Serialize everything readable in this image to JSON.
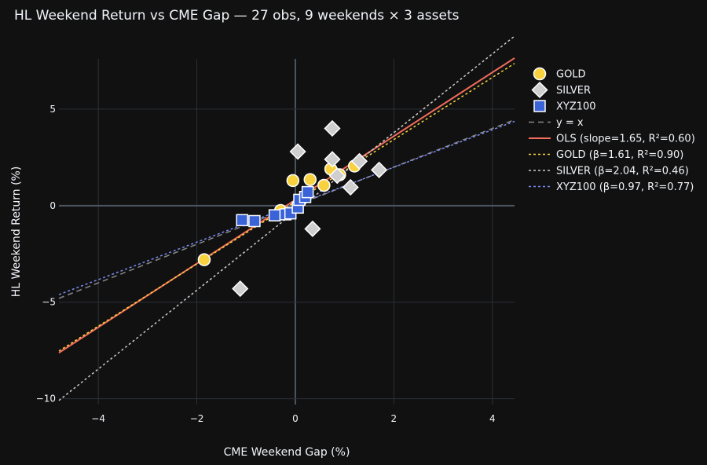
{
  "chart_data": {
    "type": "scatter",
    "title": "HL Weekend Return vs CME Gap — 27 obs, 9 weekends × 3 assets",
    "xlabel": "CME Weekend Gap (%)",
    "ylabel": "HL Weekend Return (%)",
    "xlim": [
      -4.8,
      4.45
    ],
    "ylim": [
      -10.3,
      7.6
    ],
    "xticks": [
      -4,
      -2,
      0,
      2,
      4
    ],
    "yticks": [
      -10,
      -5,
      0,
      5
    ],
    "xtick_labels": [
      "−4",
      "−2",
      "0",
      "2",
      "4"
    ],
    "ytick_labels": [
      "−10",
      "−5",
      "0",
      "5"
    ],
    "grid": true,
    "legend_position": "top-right, outside plot",
    "series": [
      {
        "name": "GOLD",
        "marker": "circle",
        "color": "#f7d23e",
        "x": [
          -1.85,
          -0.3,
          -0.05,
          0.3,
          0.58,
          0.72,
          0.9,
          1.2,
          0.1
        ],
        "y": [
          -2.8,
          -0.25,
          1.3,
          1.35,
          1.05,
          1.9,
          1.6,
          2.05,
          0.25
        ]
      },
      {
        "name": "SILVER",
        "marker": "diamond",
        "color": "#cfcfcf",
        "x": [
          -1.12,
          0.05,
          0.35,
          0.75,
          0.75,
          1.12,
          1.7,
          1.3,
          0.85
        ],
        "y": [
          -4.3,
          2.8,
          -1.2,
          4.0,
          2.4,
          0.95,
          1.85,
          2.3,
          1.55
        ]
      },
      {
        "name": "XYZ100",
        "marker": "square",
        "color": "#3a63d8",
        "x": [
          -1.08,
          -0.83,
          -0.42,
          -0.2,
          -0.1,
          0.05,
          0.08,
          0.2,
          0.25
        ],
        "y": [
          -0.75,
          -0.8,
          -0.5,
          -0.45,
          -0.4,
          -0.1,
          0.3,
          0.45,
          0.7
        ]
      }
    ],
    "lines": [
      {
        "name": "y = x",
        "slope": 1.0,
        "intercept": 0.0,
        "color": "#888888",
        "dash": "dash"
      },
      {
        "name": "OLS (slope=1.65, R²=0.60)",
        "slope": 1.65,
        "intercept": 0.3,
        "color": "#f26d5b",
        "dash": "solid"
      },
      {
        "name": "GOLD (β=1.61, R²=0.90)",
        "slope": 1.61,
        "intercept": 0.2,
        "color": "#f7d23e",
        "dash": "dot"
      },
      {
        "name": "SILVER (β=2.04, R²=0.46)",
        "slope": 2.04,
        "intercept": -0.3,
        "color": "#cccccc",
        "dash": "dot"
      },
      {
        "name": "XYZ100 (β=0.97, R²=0.77)",
        "slope": 0.97,
        "intercept": 0.05,
        "color": "#7b8cf5",
        "dash": "dot"
      }
    ]
  }
}
